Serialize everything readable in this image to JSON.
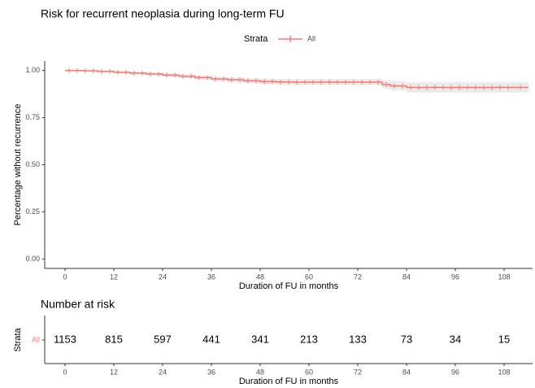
{
  "chart_data": [
    {
      "type": "step",
      "title": "Risk for recurrent neoplasia during long-term FU",
      "legend_title": "Strata",
      "x_label": "Duration of FU in months",
      "y_label": "Percentage without recurrence",
      "xlim": [
        -5,
        115
      ],
      "ylim": [
        -0.05,
        1.05
      ],
      "xticks": [
        0,
        12,
        24,
        36,
        48,
        60,
        72,
        84,
        96,
        108
      ],
      "yticks": [
        {
          "value": 0,
          "label": "0.00"
        },
        {
          "value": 0.25,
          "label": "0.25"
        },
        {
          "value": 0.5,
          "label": "0.50"
        },
        {
          "value": 0.75,
          "label": "0.75"
        },
        {
          "value": 1,
          "label": "1.00"
        }
      ],
      "series": [
        {
          "name": "All",
          "color": "#f8766d",
          "x": [
            0,
            4,
            8,
            12,
            16,
            20,
            24,
            28,
            32,
            36,
            40,
            44,
            48,
            52,
            56,
            78,
            80,
            84,
            114
          ],
          "values": [
            1,
            0.998,
            0.995,
            0.99,
            0.986,
            0.981,
            0.975,
            0.969,
            0.962,
            0.955,
            0.95,
            0.945,
            0.941,
            0.939,
            0.938,
            0.925,
            0.918,
            0.91,
            0.91
          ],
          "ci_lower": [
            1,
            0.995,
            0.99,
            0.984,
            0.979,
            0.973,
            0.966,
            0.959,
            0.951,
            0.943,
            0.937,
            0.931,
            0.926,
            0.923,
            0.921,
            0.903,
            0.893,
            0.882,
            0.882
          ],
          "ci_upper": [
            1,
            1,
            0.999,
            0.996,
            0.993,
            0.989,
            0.984,
            0.979,
            0.973,
            0.967,
            0.963,
            0.959,
            0.956,
            0.955,
            0.955,
            0.947,
            0.943,
            0.938,
            0.938
          ],
          "censor_x": [
            1,
            3,
            5,
            7,
            9,
            11,
            13,
            15,
            17,
            19,
            21,
            23,
            25,
            27,
            29,
            31,
            33,
            35,
            37,
            39,
            41,
            43,
            45,
            47,
            49,
            51,
            53,
            55,
            57,
            59,
            61,
            63,
            65,
            67,
            69,
            71,
            73,
            75,
            77,
            79,
            81,
            83,
            85,
            87,
            89,
            91,
            93,
            95,
            97,
            99,
            101,
            103,
            105,
            107,
            109,
            112
          ]
        }
      ]
    },
    {
      "type": "risk_table",
      "title": "Number at risk",
      "x_label": "Duration of FU in months",
      "y_label": "Strata",
      "row_label": "All",
      "color": "#f8766d",
      "xlim": [
        -5,
        115
      ],
      "xticks": [
        0,
        12,
        24,
        36,
        48,
        60,
        72,
        84,
        96,
        108
      ],
      "x": [
        0,
        12,
        24,
        36,
        48,
        60,
        72,
        84,
        96,
        108
      ],
      "values": [
        1153,
        815,
        597,
        441,
        341,
        213,
        133,
        73,
        34,
        15
      ]
    }
  ]
}
